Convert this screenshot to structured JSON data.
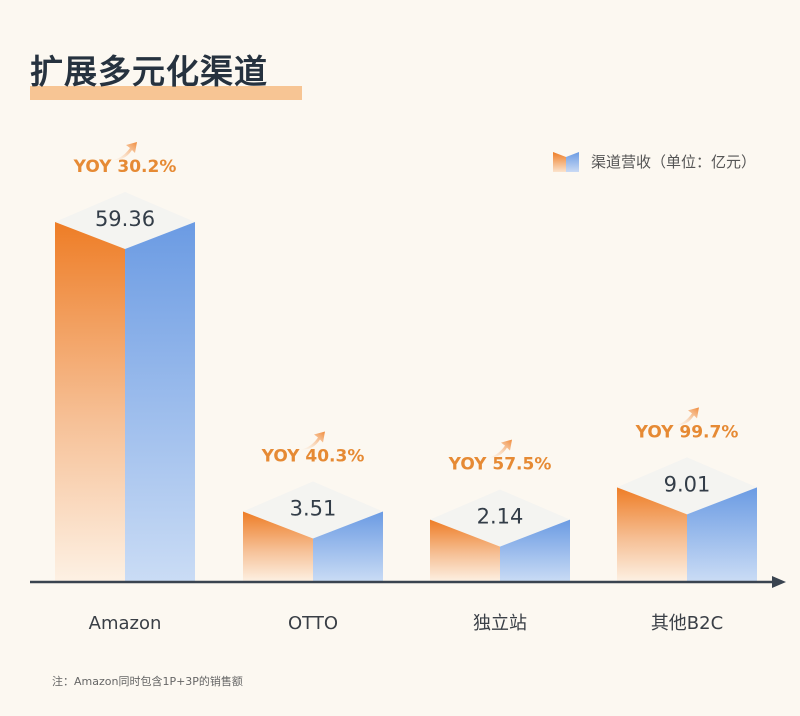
{
  "title": "扩展多元化渠道",
  "legend": {
    "label": "渠道营收（单位：亿元）"
  },
  "note": "注：Amazon同时包含1P+3P的销售额",
  "colors": {
    "orange": "#ee7d26",
    "blue": "#6b9be3",
    "yoy_text": "#e68a34",
    "title": "#26323f",
    "highlight": "#f7c594",
    "axis": "#3a4450"
  },
  "chart_data": {
    "type": "bar",
    "title": "扩展多元化渠道",
    "xlabel": "",
    "ylabel": "渠道营收（单位：亿元）",
    "categories": [
      "Amazon",
      "OTTO",
      "独立站",
      "其他B2C"
    ],
    "series": [
      {
        "name": "渠道营收（单位：亿元）",
        "values": [
          59.36,
          3.51,
          2.14,
          9.01
        ]
      }
    ],
    "value_labels": [
      "59.36",
      "3.51",
      "2.14",
      "9.01"
    ],
    "yoy_labels": [
      "YOY 30.2%",
      "YOY 40.3%",
      "YOY 57.5%",
      "YOY 99.7%"
    ],
    "yoy_values": [
      30.2,
      40.3,
      57.5,
      99.7
    ],
    "grid": false,
    "legend_position": "top-right"
  }
}
